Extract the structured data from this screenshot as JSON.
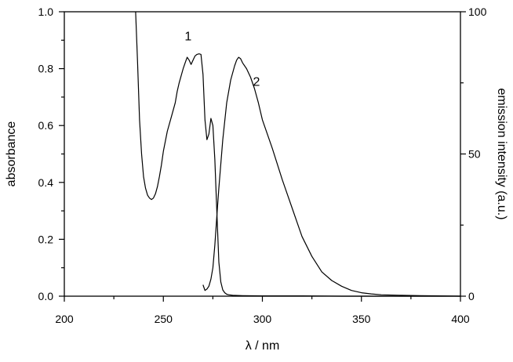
{
  "chart_data": {
    "type": "line",
    "title": "",
    "xlabel": "λ / nm",
    "ylabel": "absorbance",
    "y2label": "emission intensity (a.u.)",
    "xlim": [
      200,
      400
    ],
    "ylim": [
      0,
      1.0
    ],
    "y2lim": [
      0,
      100
    ],
    "x_ticks": [
      "200",
      "250",
      "300",
      "350",
      "400"
    ],
    "y_ticks": [
      "0.0",
      "0.2",
      "0.4",
      "0.6",
      "0.8",
      "1.0"
    ],
    "y2_ticks": [
      "0",
      "50",
      "100"
    ],
    "grid": false,
    "series": [
      {
        "name": "1",
        "axis": "left",
        "x": [
          236,
          237,
          238,
          239,
          240,
          241,
          242,
          243,
          244,
          245,
          246,
          247,
          248,
          249,
          250,
          252,
          254,
          256,
          257,
          258,
          260,
          261,
          262,
          263,
          264,
          265,
          266,
          267,
          268,
          269,
          270,
          271,
          272,
          273,
          274,
          275,
          276,
          277,
          278,
          279,
          280,
          281,
          282,
          283,
          285,
          290,
          300,
          320,
          340,
          360,
          380,
          400
        ],
        "values": [
          1.0,
          0.82,
          0.62,
          0.5,
          0.42,
          0.38,
          0.355,
          0.345,
          0.34,
          0.345,
          0.36,
          0.385,
          0.42,
          0.46,
          0.51,
          0.58,
          0.63,
          0.68,
          0.72,
          0.75,
          0.8,
          0.82,
          0.84,
          0.83,
          0.815,
          0.83,
          0.845,
          0.85,
          0.852,
          0.85,
          0.78,
          0.62,
          0.55,
          0.57,
          0.625,
          0.6,
          0.48,
          0.3,
          0.12,
          0.05,
          0.022,
          0.012,
          0.007,
          0.005,
          0.003,
          0.002,
          0.001,
          0.001,
          0.0,
          0.0,
          0.0,
          0.0
        ]
      },
      {
        "name": "2",
        "axis": "right",
        "x": [
          270,
          271,
          272,
          273,
          274,
          275,
          276,
          277,
          278,
          280,
          282,
          284,
          286,
          287,
          288,
          289,
          290,
          292,
          294,
          296,
          298,
          300,
          305,
          310,
          315,
          320,
          325,
          330,
          335,
          340,
          345,
          350,
          355,
          360,
          370,
          380,
          390,
          400
        ],
        "values": [
          4,
          2,
          2.5,
          3.5,
          6,
          10,
          18,
          28,
          38,
          55,
          68,
          76,
          81,
          83,
          84,
          83.5,
          82,
          80,
          77,
          73,
          68,
          62,
          52,
          41,
          31,
          21,
          14,
          8.5,
          5.5,
          3.5,
          2,
          1.2,
          0.8,
          0.5,
          0.3,
          0.2,
          0.1,
          0.0
        ]
      }
    ]
  }
}
